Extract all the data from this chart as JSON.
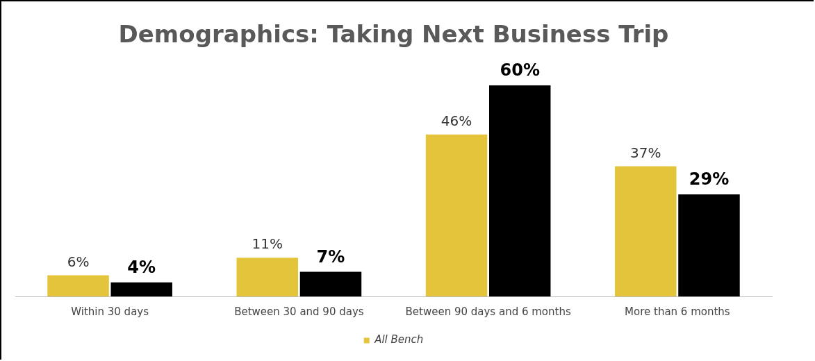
{
  "chart_data": {
    "type": "bar",
    "title": "Demographics: Taking Next Business Trip",
    "categories": [
      "Within 30 days",
      "Between 30 and 90 days",
      "Between 90 days and 6 months",
      "More than 6 months"
    ],
    "series": [
      {
        "name": "All Bench",
        "color": "#e3c43a",
        "values": [
          6,
          11,
          46,
          37
        ],
        "value_labels": [
          "6%",
          "11%",
          "46%",
          "37%"
        ]
      },
      {
        "color": "#000000",
        "values": [
          4,
          7,
          60,
          29
        ],
        "value_labels": [
          "4%",
          "7%",
          "60%",
          "29%"
        ]
      }
    ],
    "grid": false,
    "legend": "bottom"
  }
}
